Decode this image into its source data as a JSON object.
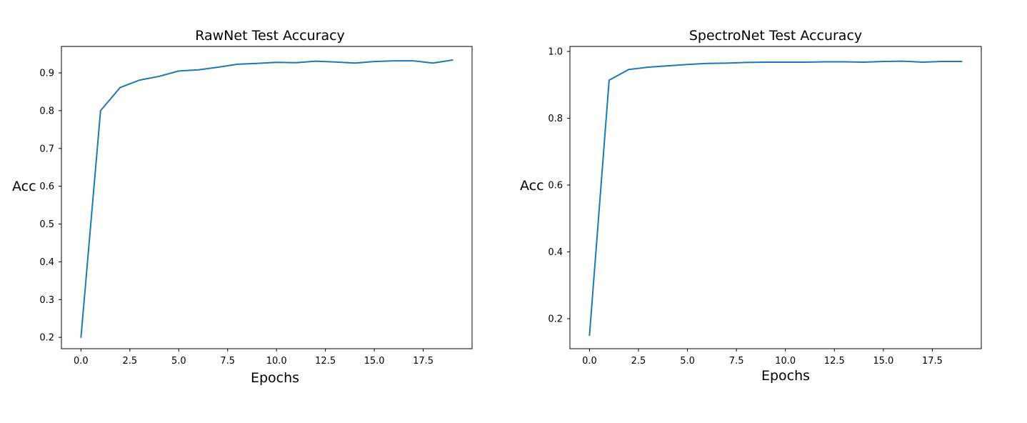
{
  "chart_data": [
    {
      "type": "line",
      "title": "RawNet Test Accuracy",
      "xlabel": "Epochs",
      "ylabel": "Acc",
      "xlim": [
        -1.0,
        20.0
      ],
      "ylim": [
        0.17,
        0.97
      ],
      "xticks": [
        0.0,
        2.5,
        5.0,
        7.5,
        10.0,
        12.5,
        15.0,
        17.5
      ],
      "xtick_labels": [
        "0.0",
        "2.5",
        "5.0",
        "7.5",
        "10.0",
        "12.5",
        "15.0",
        "17.5"
      ],
      "yticks": [
        0.2,
        0.3,
        0.4,
        0.5,
        0.6,
        0.7,
        0.8,
        0.9
      ],
      "ytick_labels": [
        "0.2",
        "0.3",
        "0.4",
        "0.5",
        "0.6",
        "0.7",
        "0.8",
        "0.9"
      ],
      "grid": false,
      "series": [
        {
          "color": "#1f77b4",
          "x": [
            0,
            1,
            2,
            3,
            4,
            5,
            6,
            7,
            8,
            9,
            10,
            11,
            12,
            13,
            14,
            15,
            16,
            17,
            18,
            19
          ],
          "values": [
            0.2,
            0.8,
            0.861,
            0.881,
            0.891,
            0.905,
            0.908,
            0.915,
            0.923,
            0.925,
            0.928,
            0.927,
            0.931,
            0.929,
            0.926,
            0.93,
            0.932,
            0.932,
            0.926,
            0.934
          ]
        }
      ]
    },
    {
      "type": "line",
      "title": "SpectroNet Test Accuracy",
      "xlabel": "Epochs",
      "ylabel": "Acc",
      "xlim": [
        -1.0,
        20.0
      ],
      "ylim": [
        0.11,
        1.015
      ],
      "xticks": [
        0.0,
        2.5,
        5.0,
        7.5,
        10.0,
        12.5,
        15.0,
        17.5
      ],
      "xtick_labels": [
        "0.0",
        "2.5",
        "5.0",
        "7.5",
        "10.0",
        "12.5",
        "15.0",
        "17.5"
      ],
      "yticks": [
        0.2,
        0.4,
        0.6,
        0.8,
        1.0
      ],
      "ytick_labels": [
        "0.2",
        "0.4",
        "0.6",
        "0.8",
        "1.0"
      ],
      "grid": false,
      "series": [
        {
          "color": "#1f77b4",
          "x": [
            0,
            1,
            2,
            3,
            4,
            5,
            6,
            7,
            8,
            9,
            10,
            11,
            12,
            13,
            14,
            15,
            16,
            17,
            18,
            19
          ],
          "values": [
            0.15,
            0.914,
            0.946,
            0.953,
            0.957,
            0.961,
            0.964,
            0.965,
            0.967,
            0.968,
            0.968,
            0.968,
            0.969,
            0.969,
            0.968,
            0.97,
            0.971,
            0.968,
            0.97,
            0.97
          ]
        }
      ]
    }
  ]
}
